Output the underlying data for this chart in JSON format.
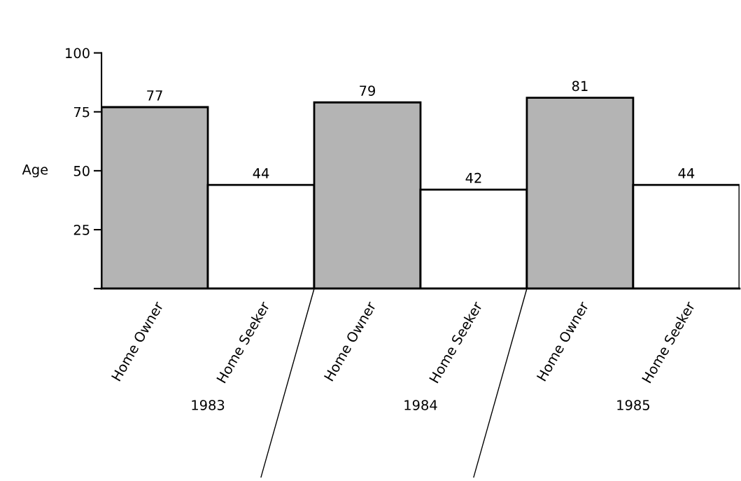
{
  "chart_data": {
    "type": "bar",
    "ylabel": "Age",
    "categories": [
      "Home Owner",
      "Home Seeker",
      "Home Owner",
      "Home Seeker",
      "Home Owner",
      "Home Seeker"
    ],
    "values": [
      77,
      44,
      79,
      42,
      81,
      44
    ],
    "colors": [
      "#b4b4b4",
      "#ffffff",
      "#b4b4b4",
      "#ffffff",
      "#b4b4b4",
      "#ffffff"
    ],
    "ylim": [
      0,
      100
    ],
    "yticks": [
      {
        "value": 0,
        "label": null
      },
      25,
      50,
      75,
      100
    ],
    "data_labels": true,
    "grid": false,
    "legend": false,
    "annotations": [
      "1983",
      "1984",
      "1985"
    ]
  }
}
